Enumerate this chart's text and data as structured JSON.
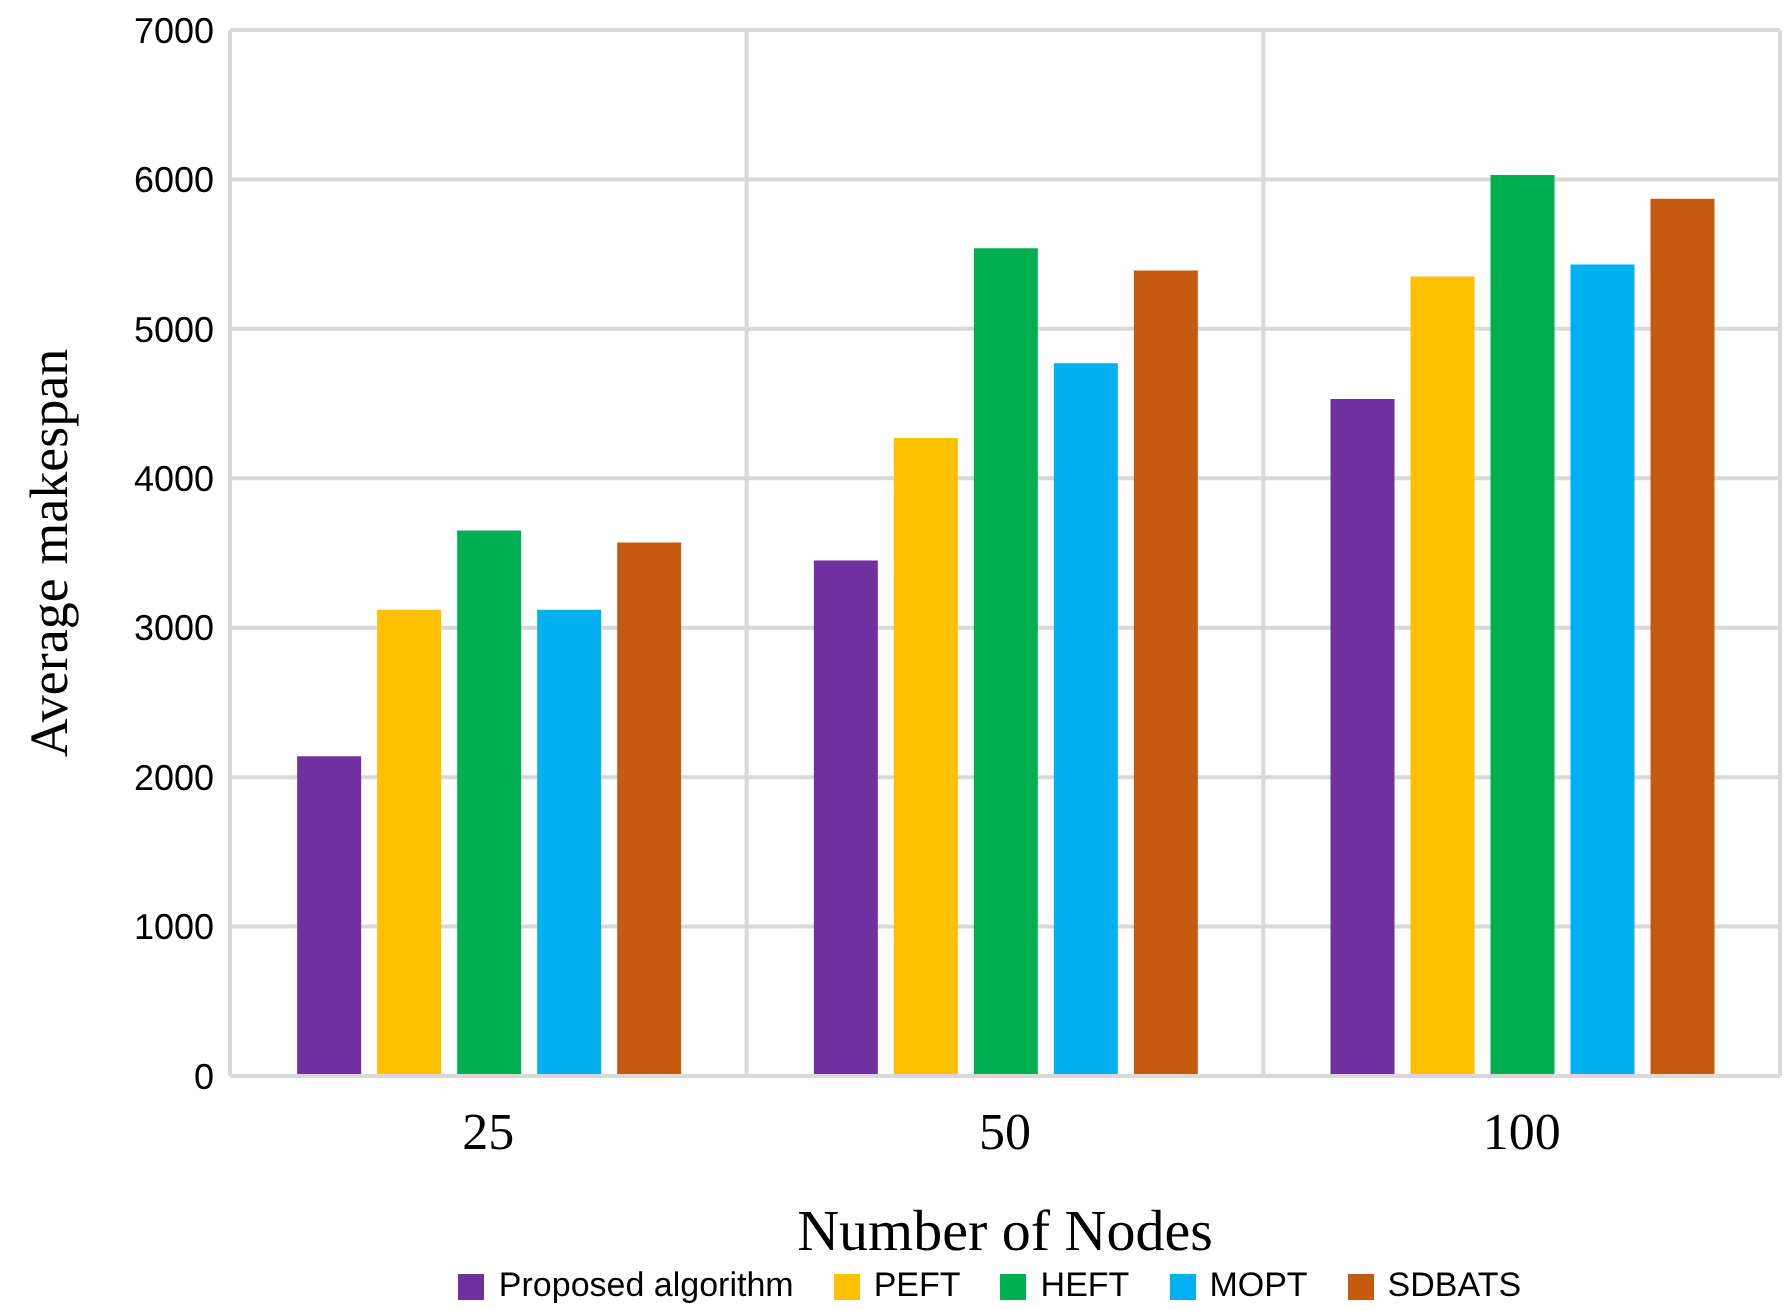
{
  "chart_data": {
    "type": "bar",
    "xlabel": "Number of Nodes",
    "ylabel": "Average makespan",
    "categories": [
      "25",
      "50",
      "100"
    ],
    "series": [
      {
        "name": "Proposed algorithm",
        "color": "#7030a0",
        "values": [
          2140,
          3450,
          4530
        ]
      },
      {
        "name": "PEFT",
        "color": "#ffc000",
        "values": [
          3120,
          4270,
          5350
        ]
      },
      {
        "name": "HEFT",
        "color": "#00b050",
        "values": [
          3650,
          5540,
          6030
        ]
      },
      {
        "name": "MOPT",
        "color": "#00b0f0",
        "values": [
          3120,
          4770,
          5430
        ]
      },
      {
        "name": "SDBATS",
        "color": "#c55a11",
        "values": [
          3570,
          5390,
          5870
        ]
      }
    ],
    "ylim": [
      0,
      7000
    ],
    "yticks": [
      0,
      1000,
      2000,
      3000,
      4000,
      5000,
      6000,
      7000
    ],
    "grid": true,
    "legend": "bottom"
  }
}
